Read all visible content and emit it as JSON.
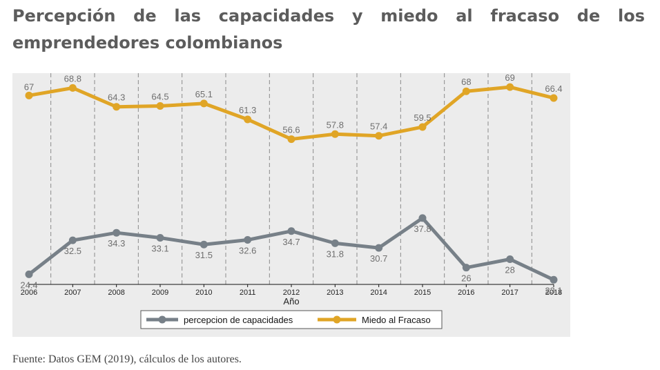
{
  "page": {
    "title": "Percepción de las capacidades y miedo al fracaso de los emprendedores colombianos",
    "source": "Fuente: Datos GEM (2019), cálculos de los autores."
  },
  "chart_data": {
    "type": "line",
    "x": [
      2006,
      2007,
      2008,
      2009,
      2010,
      2011,
      2012,
      2013,
      2014,
      2015,
      2016,
      2017,
      2018
    ],
    "xlabel": "Año",
    "ylabel": "",
    "ylim": [
      22,
      71
    ],
    "grid": "vertical dashed",
    "legend_position": "bottom",
    "series": [
      {
        "name": "percepcion de capacidades",
        "color": "#778088",
        "values": [
          24.4,
          32.5,
          34.3,
          33.1,
          31.5,
          32.6,
          34.7,
          31.8,
          30.7,
          37.8,
          26,
          28,
          23.1
        ]
      },
      {
        "name": "Miedo al Fracaso",
        "color": "#e0a526",
        "values": [
          67,
          68.8,
          64.3,
          64.5,
          65.1,
          61.3,
          56.6,
          57.8,
          57.4,
          59.5,
          68,
          69,
          66.4
        ]
      }
    ]
  }
}
